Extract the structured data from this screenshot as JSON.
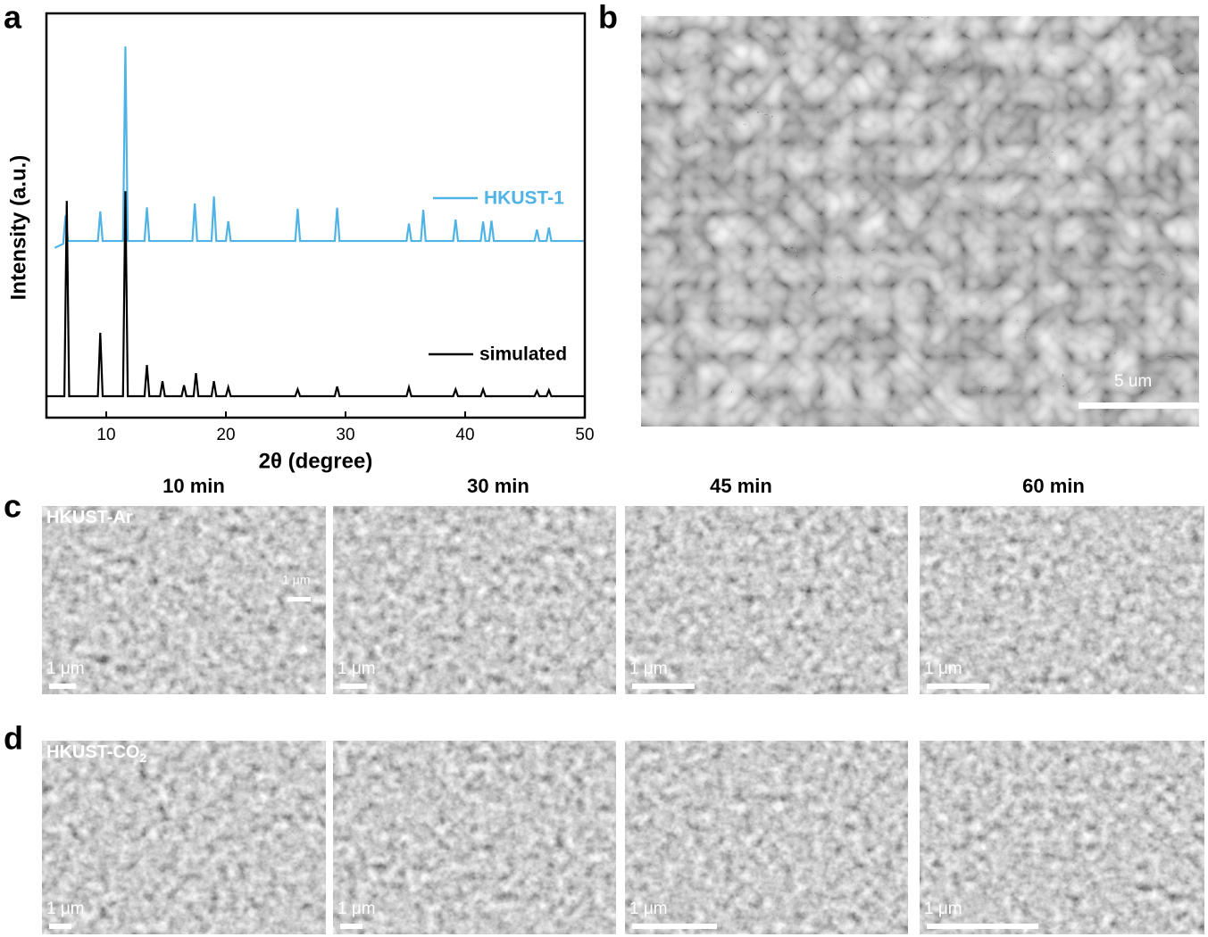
{
  "panel_labels": [
    "a",
    "b",
    "c",
    "d"
  ],
  "chart_data": {
    "type": "line",
    "xlabel": "2θ (degree)",
    "ylabel": "Intensity (a.u.)",
    "xlim": [
      5,
      50
    ],
    "ylim": [
      0,
      100
    ],
    "xticks": [
      10,
      20,
      30,
      40,
      50
    ],
    "series": [
      {
        "name": "HKUST-1",
        "color": "#4fb3e6",
        "x": [
          5.7,
          6.4,
          6.6,
          6.8,
          9.3,
          9.5,
          9.7,
          11.4,
          11.6,
          11.8,
          13.2,
          13.4,
          13.6,
          17.2,
          17.4,
          17.6,
          18.8,
          19,
          19.2,
          20,
          20.2,
          20.4,
          25.8,
          26,
          26.2,
          29.1,
          29.3,
          29.5,
          35.1,
          35.3,
          35.5,
          36.3,
          36.5,
          36.7,
          39,
          39.2,
          39.4,
          41.3,
          41.5,
          41.7,
          42,
          42.2,
          42.4,
          45.8,
          46,
          46.2,
          46.8,
          47,
          47.2,
          50
        ],
        "values": [
          42,
          43,
          50,
          43.7,
          43.7,
          51,
          43.7,
          43.7,
          91.8,
          43.7,
          43.7,
          52,
          43.7,
          43.7,
          53,
          43.7,
          43.7,
          54.7,
          43.7,
          43.7,
          48.6,
          43.7,
          43.7,
          51.7,
          43.7,
          43.7,
          51.9,
          43.7,
          43.7,
          48,
          43.7,
          43.7,
          51.4,
          43.7,
          43.7,
          49,
          43.7,
          43.7,
          48.5,
          43.7,
          43.7,
          48.7,
          43.7,
          43.7,
          46.5,
          43.7,
          43.7,
          47,
          43.7,
          43.7
        ]
      },
      {
        "name": "simulated",
        "color": "#000000",
        "x": [
          5,
          6.5,
          6.7,
          6.9,
          9.3,
          9.5,
          9.7,
          11.4,
          11.6,
          11.8,
          13.2,
          13.4,
          13.6,
          14.5,
          14.7,
          14.9,
          16.3,
          16.5,
          16.7,
          17.3,
          17.5,
          17.7,
          18.8,
          19,
          19.2,
          20,
          20.2,
          20.4,
          25.8,
          26,
          26.2,
          29.1,
          29.3,
          29.5,
          35.1,
          35.3,
          35.5,
          39,
          39.2,
          39.4,
          41.3,
          41.5,
          41.7,
          45.8,
          46,
          46.2,
          46.8,
          47,
          47.2,
          50
        ],
        "values": [
          5.3,
          5.3,
          53.6,
          5.3,
          5.3,
          21,
          5.3,
          5.3,
          56,
          5.3,
          5.3,
          13,
          5.3,
          5.3,
          9,
          5.3,
          5.3,
          8,
          5.3,
          5.3,
          11,
          5.3,
          5.3,
          9,
          5.3,
          5.3,
          7.5,
          5.3,
          5.3,
          7,
          5.3,
          5.3,
          7.7,
          5.3,
          5.3,
          7.5,
          5.3,
          5.3,
          7,
          5.3,
          5.3,
          7,
          5.3,
          5.3,
          6.6,
          5.3,
          5.3,
          6.8,
          5.3,
          5.3
        ]
      }
    ]
  },
  "sem_b": {
    "scale_label": "5 um"
  },
  "time_labels": [
    "10 min",
    "30 min",
    "45 min",
    "60 min"
  ],
  "rows": [
    {
      "label": "HKUST-Ar",
      "inset_scale_label": "1 μm",
      "scale_labels": [
        "1 μm",
        "1 μm",
        "1 μm",
        "1 μm"
      ]
    },
    {
      "label": "HKUST-CO",
      "label_sub": "2",
      "scale_labels": [
        "1 μm",
        "1 μm",
        "1 μm",
        "1 μm"
      ]
    }
  ]
}
